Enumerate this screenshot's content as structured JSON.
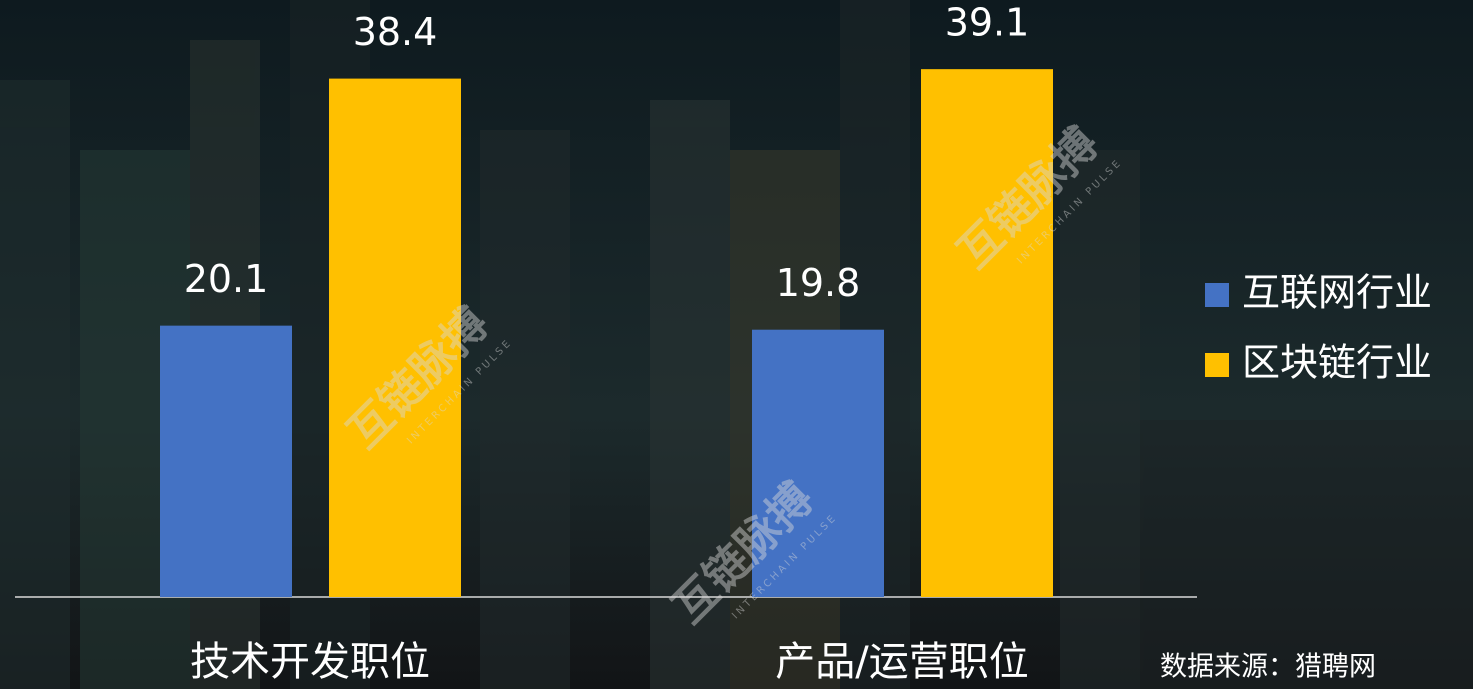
{
  "chart_data": {
    "type": "bar",
    "categories": [
      "技术开发职位",
      "产品/运营职位"
    ],
    "series": [
      {
        "name": "互联网行业",
        "color": "#4472c4",
        "values": [
          20.1,
          19.8
        ]
      },
      {
        "name": "区块链行业",
        "color": "#ffc000",
        "values": [
          38.4,
          39.1
        ]
      }
    ],
    "ylim": [
      0,
      44
    ],
    "source": "数据来源：猎聘网",
    "watermark": {
      "name": "互链脉搏",
      "subtitle": "INTERCHAIN PULSE"
    }
  }
}
